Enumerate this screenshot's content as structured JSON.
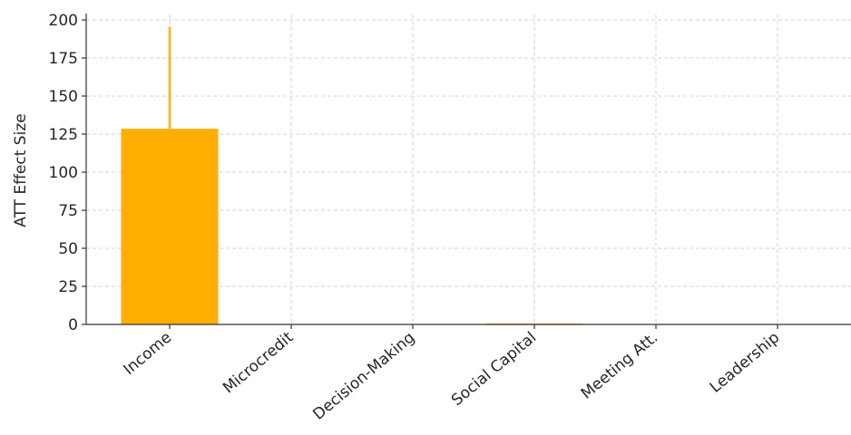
{
  "chart_data": {
    "type": "bar",
    "title": "",
    "xlabel": "",
    "ylabel": "ATT Effect Size",
    "categories": [
      "Income",
      "Microcredit",
      "Decision-Making",
      "Social Capital",
      "Meeting Att.",
      "Leadership"
    ],
    "values": [
      128.5,
      0.03,
      0.02,
      0.6,
      0.01,
      0.02
    ],
    "error_upper": [
      195.5,
      0.05,
      0.04,
      0.8,
      0.02,
      0.03
    ],
    "ylim": [
      0,
      200
    ],
    "yticks": [
      "0",
      "25",
      "50",
      "75",
      "100",
      "125",
      "150",
      "175",
      "200"
    ],
    "grid": true,
    "bar_color": "#FFAE00"
  }
}
